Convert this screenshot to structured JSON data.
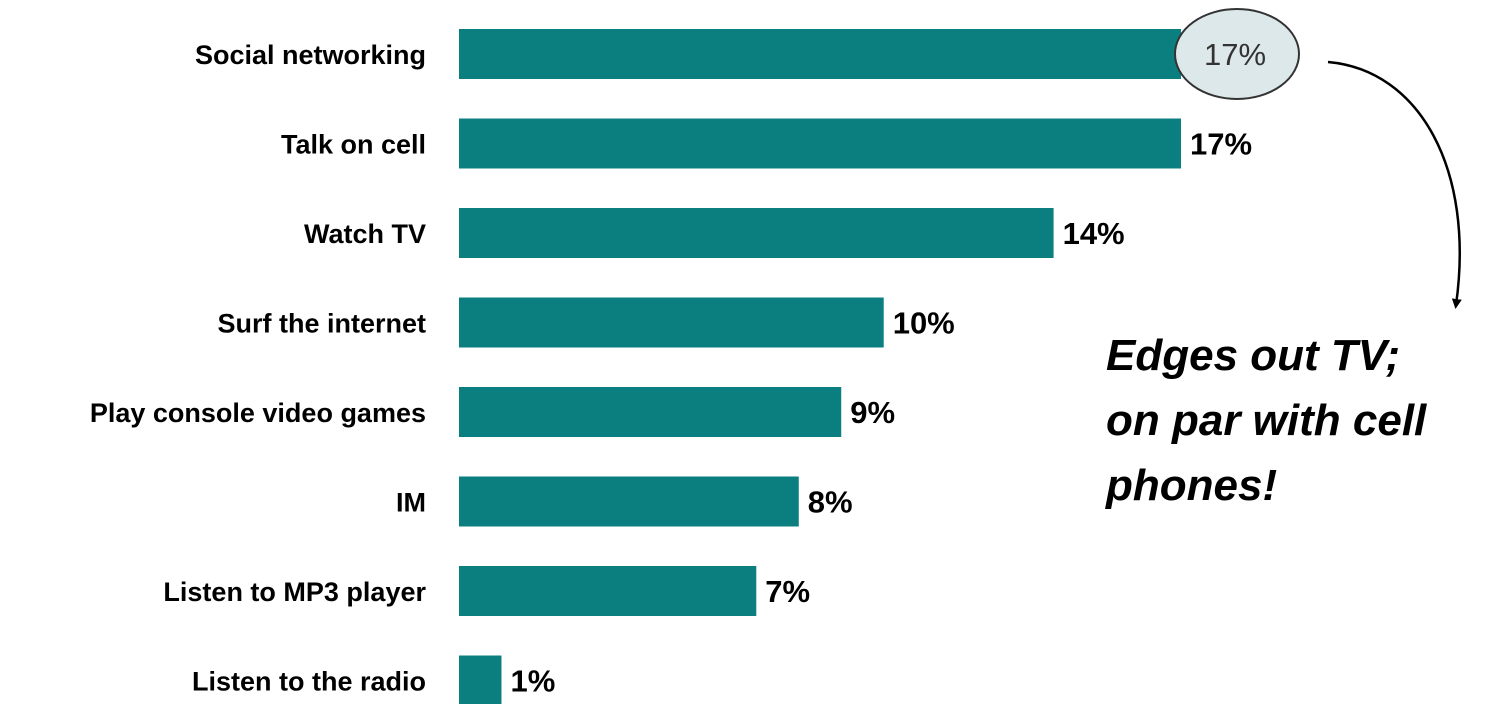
{
  "chart_data": {
    "type": "bar",
    "orientation": "horizontal",
    "categories": [
      "Social networking",
      "Talk on cell",
      "Watch TV",
      "Surf the internet",
      "Play console video games",
      "IM",
      "Listen to MP3 player",
      "Listen to the radio"
    ],
    "values": [
      17,
      17,
      14,
      10,
      9,
      8,
      7,
      1
    ],
    "value_labels": [
      "17%",
      "17%",
      "14%",
      "10%",
      "9%",
      "8%",
      "7%",
      "1%"
    ],
    "xlim": [
      0,
      17
    ],
    "grid": false,
    "bar_color": "#0b7f7f",
    "highlight_index": 0,
    "highlight_fill": "#dde8ea",
    "annotation": {
      "lines": [
        "Edges out TV;",
        "on par with cell",
        "phones!"
      ]
    }
  }
}
